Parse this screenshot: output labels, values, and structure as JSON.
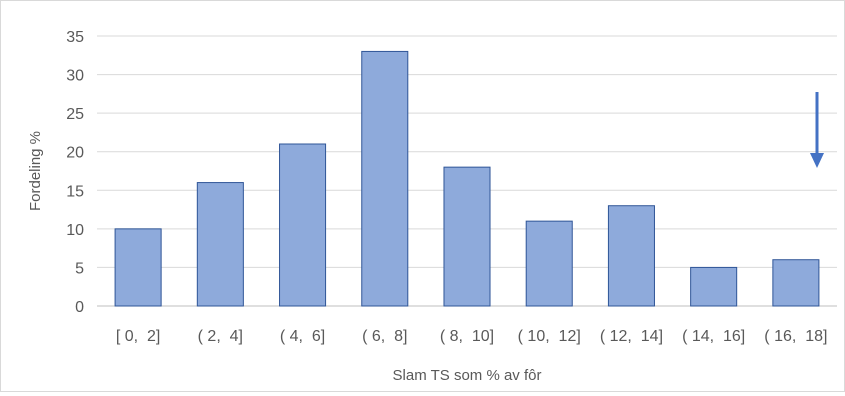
{
  "chart_data": {
    "type": "bar",
    "title": "",
    "xlabel": "Slam TS som % av fôr",
    "ylabel": "Fordeling %",
    "categories": [
      "[ 0,  2]",
      "( 2,  4]",
      "( 4,  6]",
      "( 6,  8]",
      "( 8,  10]",
      "( 10,  12]",
      "( 12,  14]",
      "( 14,  16]",
      "( 16,  18]"
    ],
    "values": [
      10,
      16,
      21,
      33,
      18,
      11,
      13,
      5,
      6
    ],
    "ylim": [
      0,
      35
    ],
    "yticks": [
      0,
      5,
      10,
      15,
      20,
      25,
      30,
      35
    ],
    "grid": true,
    "legend": "none",
    "colors": {
      "bar_fill": "#8eaadb",
      "bar_stroke": "#2f5597",
      "grid": "#d9d9d9",
      "axis": "#bfbfbf",
      "text": "#595959",
      "arrow": "#4472c4"
    },
    "annotation": {
      "type": "arrow",
      "direction": "down",
      "icon": "down-arrow-icon"
    }
  }
}
